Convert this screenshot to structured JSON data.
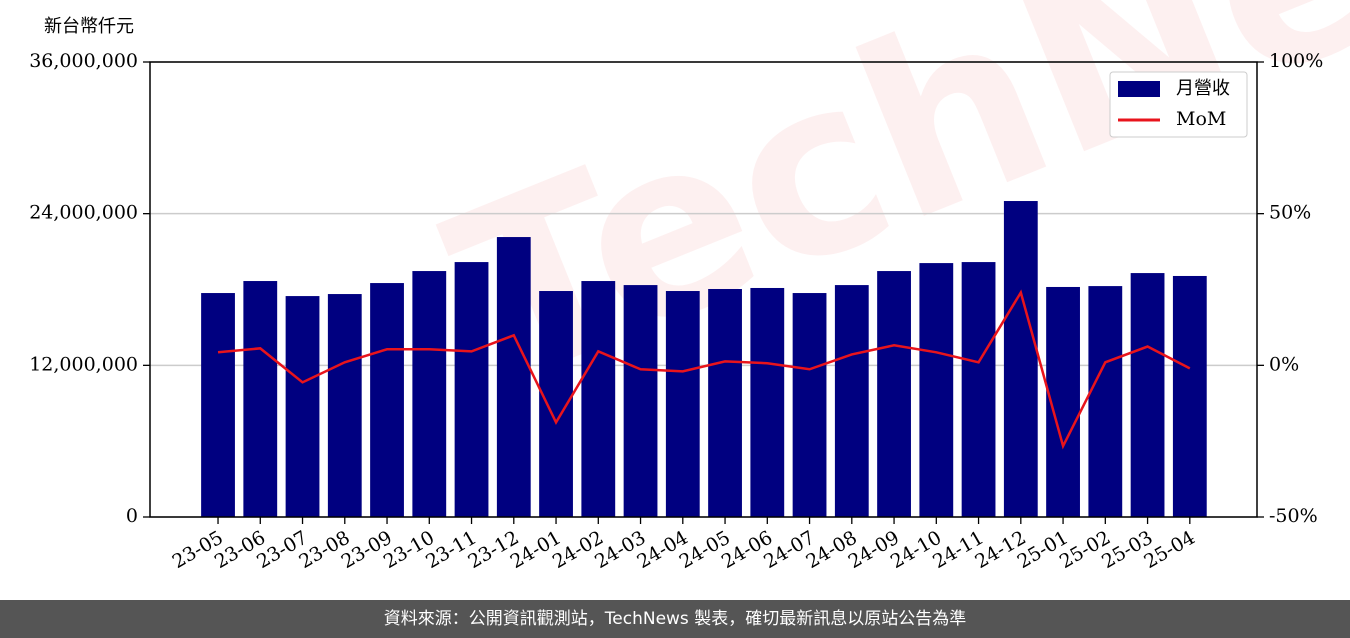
{
  "chart_data": {
    "type": "bar_line",
    "y_label": "新台幣仟元",
    "watermark": "TechNews",
    "footer": "資料來源：公開資訊觀測站，TechNews 製表，確切最新訊息以原站公告為準",
    "categories": [
      "23-05",
      "23-06",
      "23-07",
      "23-08",
      "23-09",
      "23-10",
      "23-11",
      "23-12",
      "24-01",
      "24-02",
      "24-03",
      "24-04",
      "24-05",
      "24-06",
      "24-07",
      "24-08",
      "24-09",
      "24-10",
      "24-11",
      "24-12",
      "25-01",
      "25-02",
      "25-03",
      "25-04"
    ],
    "series": [
      {
        "name": "月營收",
        "type": "bar",
        "color": "#000080",
        "values": [
          17720000,
          18670000,
          17480000,
          17640000,
          18510000,
          19460000,
          20170000,
          22150000,
          17880000,
          18670000,
          18350000,
          17880000,
          18040000,
          18120000,
          17720000,
          18350000,
          19460000,
          20090000,
          20170000,
          25000000,
          18200000,
          18270000,
          19300000,
          19070000
        ]
      },
      {
        "name": "MoM",
        "type": "line",
        "axis": "y2",
        "color": "#e8141c",
        "values": [
          4.3,
          5.6,
          -5.6,
          1.0,
          5.3,
          5.3,
          4.6,
          9.9,
          -18.8,
          4.6,
          -1.3,
          -2.0,
          1.3,
          0.7,
          -1.3,
          3.6,
          6.6,
          4.3,
          1.0,
          24.0,
          -26.6,
          1.0,
          6.2,
          -1.0
        ]
      }
    ],
    "ylim": [
      0,
      36000000
    ],
    "yticks": [
      0,
      {
        "value": 12000000,
        "label": "12,000,000"
      },
      {
        "value": 24000000,
        "label": "24,000,000"
      },
      {
        "value": 36000000,
        "label": "36,000,000"
      }
    ],
    "y2lim": [
      -50,
      100
    ],
    "y2ticks": [
      {
        "value": -50,
        "label": "-50%"
      },
      {
        "value": 0,
        "label": "0%"
      },
      {
        "value": 50,
        "label": "50%"
      },
      {
        "value": 100,
        "label": "100%"
      }
    ],
    "grid": true,
    "legend": "upper right"
  }
}
